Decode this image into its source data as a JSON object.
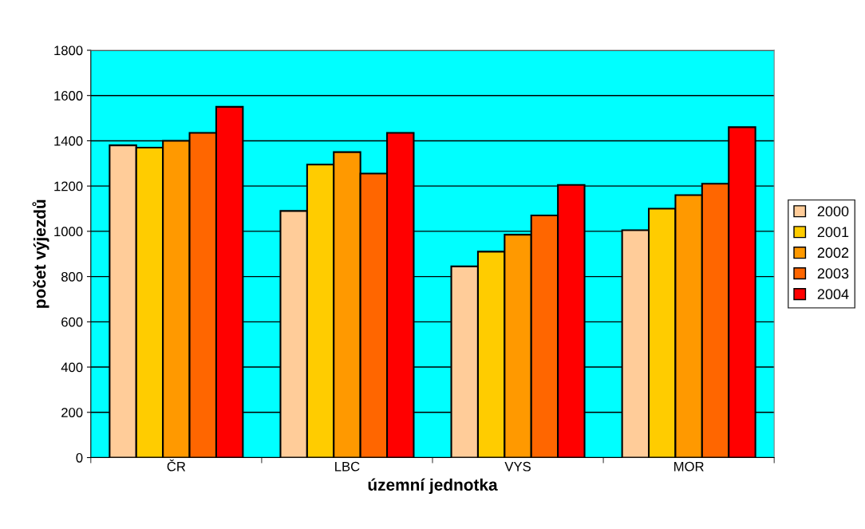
{
  "chart_data": {
    "type": "bar",
    "xlabel": "územní jednotka",
    "ylabel": "počet výjezdů",
    "categories": [
      "ČR",
      "LBC",
      "VYS",
      "MOR"
    ],
    "series": [
      {
        "name": "2000",
        "color": "#ffcc99",
        "values": [
          1380,
          1090,
          845,
          1005
        ]
      },
      {
        "name": "2001",
        "color": "#ffcc00",
        "values": [
          1370,
          1295,
          910,
          1100
        ]
      },
      {
        "name": "2002",
        "color": "#ff9900",
        "values": [
          1400,
          1350,
          985,
          1160
        ]
      },
      {
        "name": "2003",
        "color": "#ff6600",
        "values": [
          1435,
          1255,
          1070,
          1210
        ]
      },
      {
        "name": "2004",
        "color": "#ff0000",
        "values": [
          1550,
          1435,
          1205,
          1460
        ]
      }
    ],
    "ylim": [
      0,
      1800
    ],
    "yticks": [
      0,
      200,
      400,
      600,
      800,
      1000,
      1200,
      1400,
      1600,
      1800
    ],
    "grid": "y",
    "legend": "right"
  }
}
